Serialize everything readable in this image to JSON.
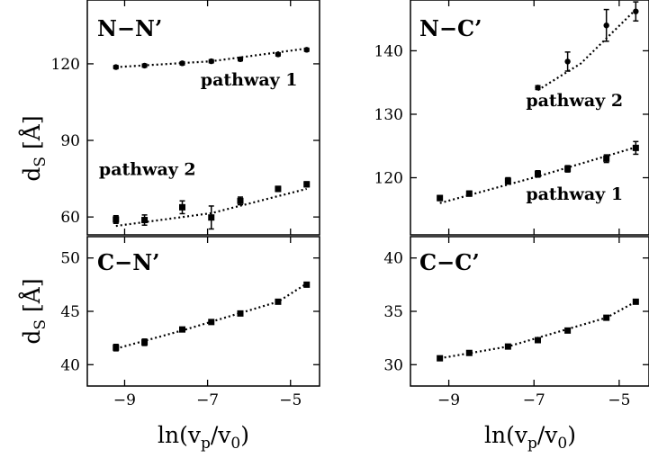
{
  "chart_data": [
    {
      "type": "scatter",
      "panel": "N-N'",
      "title": "N−N’",
      "xlabel": "",
      "ylabel": "d_S [Å]",
      "xlim": [
        -9.9,
        -4.3
      ],
      "ylim": [
        53,
        145
      ],
      "xticks": [
        -9,
        -7,
        -5
      ],
      "yticks": [
        60,
        90,
        120
      ],
      "ytick_labels": [
        "60",
        "90",
        "120"
      ],
      "series": [
        {
          "name": "pathway 1",
          "marker": "circle",
          "x": [
            -9.21,
            -8.52,
            -7.61,
            -6.91,
            -6.21,
            -5.3,
            -4.61
          ],
          "y": [
            118.7,
            119.3,
            120.2,
            121.0,
            121.8,
            123.7,
            125.5
          ],
          "err": [
            0.6,
            0.6,
            0.6,
            0.6,
            0.6,
            0.6,
            0.6
          ],
          "fit": [
            [
              -9.21,
              118.7
            ],
            [
              -6.91,
              121.0
            ],
            [
              -4.61,
              126.0
            ]
          ]
        },
        {
          "name": "pathway 2",
          "marker": "square",
          "x": [
            -9.21,
            -8.52,
            -7.61,
            -6.91,
            -6.21,
            -5.3,
            -4.61
          ],
          "y": [
            59.0,
            58.8,
            63.8,
            59.8,
            66.3,
            71.0,
            72.8
          ],
          "err": [
            1.5,
            2.0,
            2.5,
            4.5,
            1.5,
            1.0,
            1.0
          ],
          "fit": [
            [
              -9.21,
              56.5
            ],
            [
              -6.91,
              61.5
            ],
            [
              -4.61,
              71.0
            ]
          ]
        }
      ],
      "annotations": [
        {
          "text": "pathway 1",
          "x": -6.0,
          "y": 111.5
        },
        {
          "text": "pathway 2",
          "x": -8.45,
          "y": 76.5
        }
      ],
      "legend": "none",
      "grid": false
    },
    {
      "type": "scatter",
      "panel": "N-C'",
      "title": "N−C’",
      "xlabel": "",
      "ylabel": "",
      "xlim": [
        -9.9,
        -4.3
      ],
      "ylim": [
        111,
        148
      ],
      "xticks": [
        -9,
        -7,
        -5
      ],
      "yticks": [
        120,
        130,
        140
      ],
      "ytick_labels": [
        "120",
        "130",
        "140"
      ],
      "series": [
        {
          "name": "pathway 2",
          "marker": "circle",
          "x": [
            -6.91,
            -6.21,
            -5.3,
            -4.61
          ],
          "y": [
            134.2,
            138.3,
            144.0,
            146.2
          ],
          "err": [
            0.3,
            1.5,
            2.5,
            1.5
          ],
          "fit": [
            [
              -6.91,
              133.8
            ],
            [
              -5.9,
              138.0
            ],
            [
              -4.61,
              146.5
            ]
          ]
        },
        {
          "name": "pathway 1",
          "marker": "square",
          "x": [
            -9.21,
            -8.52,
            -7.61,
            -6.91,
            -6.21,
            -5.3,
            -4.61
          ],
          "y": [
            116.8,
            117.5,
            119.5,
            120.6,
            121.4,
            123.0,
            124.7
          ],
          "err": [
            0.4,
            0.4,
            0.5,
            0.5,
            0.5,
            0.6,
            1.0
          ],
          "fit": [
            [
              -9.21,
              116.0
            ],
            [
              -6.91,
              120.2
            ],
            [
              -4.61,
              124.8
            ]
          ]
        }
      ],
      "annotations": [
        {
          "text": "pathway 2",
          "x": -6.05,
          "y": 131.3
        },
        {
          "text": "pathway 1",
          "x": -6.05,
          "y": 116.5
        }
      ],
      "legend": "none",
      "grid": false
    },
    {
      "type": "scatter",
      "panel": "C-N'",
      "title": "C−N’",
      "xlabel": "ln(v_p/v_0)",
      "ylabel": "d_S [Å]",
      "xlim": [
        -9.9,
        -4.3
      ],
      "ylim": [
        38,
        52
      ],
      "xticks": [
        -9,
        -7,
        -5
      ],
      "yticks": [
        40,
        45,
        50
      ],
      "ytick_labels": [
        "40",
        "45",
        "50"
      ],
      "series": [
        {
          "name": "",
          "marker": "square",
          "x": [
            -9.21,
            -8.52,
            -7.61,
            -6.91,
            -6.21,
            -5.3,
            -4.61
          ],
          "y": [
            41.6,
            42.1,
            43.3,
            44.0,
            44.8,
            45.9,
            47.5
          ],
          "err": [
            0.3,
            0.3,
            0.2,
            0.2,
            0.2,
            0.2,
            0.2
          ],
          "fit": [
            [
              -9.21,
              41.5
            ],
            [
              -7.61,
              43.2
            ],
            [
              -5.3,
              45.9
            ],
            [
              -4.61,
              47.6
            ]
          ]
        }
      ],
      "legend": "none",
      "grid": false
    },
    {
      "type": "scatter",
      "panel": "C-C'",
      "title": "C−C’",
      "xlabel": "ln(v_p/v_0)",
      "ylabel": "",
      "xlim": [
        -9.9,
        -4.3
      ],
      "ylim": [
        28,
        42
      ],
      "xticks": [
        -9,
        -7,
        -5
      ],
      "yticks": [
        30,
        35,
        40
      ],
      "ytick_labels": [
        "30",
        "35",
        "40"
      ],
      "series": [
        {
          "name": "",
          "marker": "square",
          "x": [
            -9.21,
            -8.52,
            -7.61,
            -6.91,
            -6.21,
            -5.3,
            -4.61
          ],
          "y": [
            30.6,
            31.1,
            31.7,
            32.3,
            33.2,
            34.4,
            35.9
          ],
          "err": [
            0.1,
            0.1,
            0.1,
            0.1,
            0.1,
            0.1,
            0.1
          ],
          "fit": [
            [
              -9.21,
              30.6
            ],
            [
              -7.61,
              31.7
            ],
            [
              -5.3,
              34.4
            ],
            [
              -4.61,
              35.9
            ]
          ]
        }
      ],
      "legend": "none",
      "grid": false
    }
  ],
  "labels": {
    "ylabel_main": "d",
    "ylabel_sub": "S",
    "ylabel_unit": " [Å]",
    "xlabel_main": "ln(v",
    "xlabel_sub1": "p",
    "xlabel_mid": "/v",
    "xlabel_sub2": "0",
    "xlabel_end": ")"
  },
  "colors": {
    "axis": "#000000",
    "markers": "#000000",
    "fit": "#000000"
  }
}
